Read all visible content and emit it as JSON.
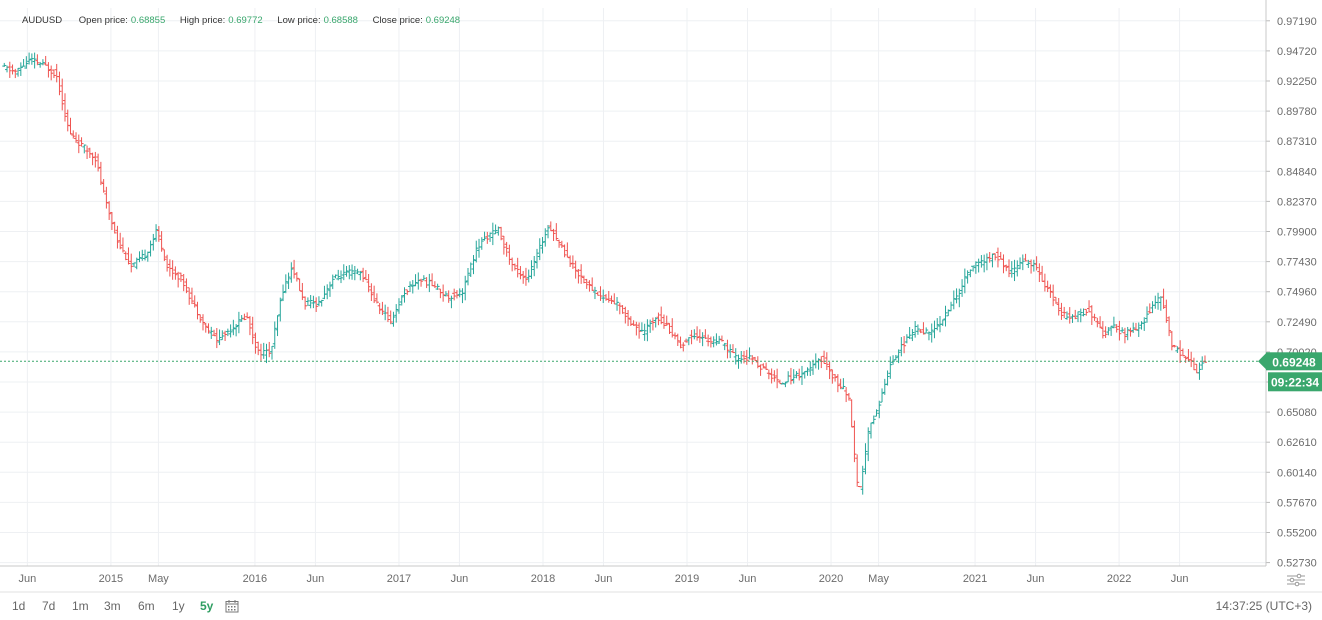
{
  "ticker": {
    "symbol": "AUDUSD",
    "open_label": "Open price:",
    "open_value": "0.68855",
    "high_label": "High price:",
    "high_value": "0.69772",
    "low_label": "Low price:",
    "low_value": "0.68588",
    "close_label": "Close price:",
    "close_value": "0.69248"
  },
  "current_price": {
    "value": "0.69248",
    "countdown": "09:22:34"
  },
  "ranges": [
    "1d",
    "7d",
    "1m",
    "3m",
    "6m",
    "1y",
    "5y"
  ],
  "active_range": "5y",
  "clock": "14:37:25 (UTC+3)",
  "colors": {
    "up": "#26a69a",
    "down": "#ef5350",
    "accent": "#3aa76d",
    "grid": "#eef0f3",
    "axis": "#6b6b6b"
  },
  "chart_data": {
    "type": "ohlc",
    "y_ticks": [
      "0.97190",
      "0.94720",
      "0.92250",
      "0.89780",
      "0.87310",
      "0.84840",
      "0.82370",
      "0.79900",
      "0.77430",
      "0.74960",
      "0.72490",
      "0.70020",
      "0.67550",
      "0.65080",
      "0.62610",
      "0.60140",
      "0.57670",
      "0.55200",
      "0.52730"
    ],
    "x_ticks": [
      {
        "label": "Jun",
        "x": 2014.42
      },
      {
        "label": "2015",
        "x": 2015.0
      },
      {
        "label": "May",
        "x": 2015.33
      },
      {
        "label": "2016",
        "x": 2016.0
      },
      {
        "label": "Jun",
        "x": 2016.42
      },
      {
        "label": "2017",
        "x": 2017.0
      },
      {
        "label": "Jun",
        "x": 2017.42
      },
      {
        "label": "2018",
        "x": 2018.0
      },
      {
        "label": "Jun",
        "x": 2018.42
      },
      {
        "label": "2019",
        "x": 2019.0
      },
      {
        "label": "Jun",
        "x": 2019.42
      },
      {
        "label": "2020",
        "x": 2020.0
      },
      {
        "label": "May",
        "x": 2020.33
      },
      {
        "label": "2021",
        "x": 2021.0
      },
      {
        "label": "Jun",
        "x": 2021.42
      },
      {
        "label": "2022",
        "x": 2022.0
      },
      {
        "label": "Jun",
        "x": 2022.42
      }
    ],
    "xlim": [
      2014.23,
      2023.02
    ],
    "ylim": [
      0.5245,
      0.9824
    ],
    "current_price": 0.69248,
    "price_path": [
      [
        2014.25,
        0.934
      ],
      [
        2014.35,
        0.93
      ],
      [
        2014.45,
        0.94
      ],
      [
        2014.55,
        0.935
      ],
      [
        2014.63,
        0.928
      ],
      [
        2014.72,
        0.88
      ],
      [
        2014.8,
        0.87
      ],
      [
        2014.9,
        0.86
      ],
      [
        2014.98,
        0.82
      ],
      [
        2015.06,
        0.79
      ],
      [
        2015.15,
        0.77
      ],
      [
        2015.25,
        0.78
      ],
      [
        2015.33,
        0.8
      ],
      [
        2015.4,
        0.77
      ],
      [
        2015.5,
        0.76
      ],
      [
        2015.58,
        0.74
      ],
      [
        2015.67,
        0.72
      ],
      [
        2015.75,
        0.71
      ],
      [
        2015.85,
        0.72
      ],
      [
        2015.95,
        0.73
      ],
      [
        2016.03,
        0.7
      ],
      [
        2016.12,
        0.7
      ],
      [
        2016.2,
        0.75
      ],
      [
        2016.27,
        0.77
      ],
      [
        2016.35,
        0.74
      ],
      [
        2016.45,
        0.74
      ],
      [
        2016.55,
        0.76
      ],
      [
        2016.65,
        0.765
      ],
      [
        2016.75,
        0.765
      ],
      [
        2016.85,
        0.74
      ],
      [
        2016.95,
        0.725
      ],
      [
        2017.05,
        0.75
      ],
      [
        2017.15,
        0.76
      ],
      [
        2017.25,
        0.755
      ],
      [
        2017.35,
        0.745
      ],
      [
        2017.45,
        0.75
      ],
      [
        2017.55,
        0.785
      ],
      [
        2017.62,
        0.795
      ],
      [
        2017.7,
        0.8
      ],
      [
        2017.8,
        0.77
      ],
      [
        2017.9,
        0.76
      ],
      [
        2017.97,
        0.78
      ],
      [
        2018.05,
        0.805
      ],
      [
        2018.12,
        0.79
      ],
      [
        2018.22,
        0.77
      ],
      [
        2018.32,
        0.755
      ],
      [
        2018.42,
        0.745
      ],
      [
        2018.52,
        0.74
      ],
      [
        2018.62,
        0.725
      ],
      [
        2018.7,
        0.715
      ],
      [
        2018.8,
        0.73
      ],
      [
        2018.88,
        0.72
      ],
      [
        2018.97,
        0.705
      ],
      [
        2019.05,
        0.715
      ],
      [
        2019.15,
        0.71
      ],
      [
        2019.25,
        0.708
      ],
      [
        2019.35,
        0.695
      ],
      [
        2019.45,
        0.695
      ],
      [
        2019.55,
        0.685
      ],
      [
        2019.65,
        0.675
      ],
      [
        2019.75,
        0.68
      ],
      [
        2019.85,
        0.685
      ],
      [
        2019.95,
        0.695
      ],
      [
        2020.05,
        0.675
      ],
      [
        2020.13,
        0.665
      ],
      [
        2020.2,
        0.58
      ],
      [
        2020.27,
        0.635
      ],
      [
        2020.35,
        0.66
      ],
      [
        2020.42,
        0.69
      ],
      [
        2020.5,
        0.705
      ],
      [
        2020.6,
        0.72
      ],
      [
        2020.7,
        0.715
      ],
      [
        2020.8,
        0.73
      ],
      [
        2020.9,
        0.75
      ],
      [
        2020.98,
        0.77
      ],
      [
        2021.08,
        0.775
      ],
      [
        2021.15,
        0.78
      ],
      [
        2021.25,
        0.765
      ],
      [
        2021.35,
        0.775
      ],
      [
        2021.43,
        0.77
      ],
      [
        2021.52,
        0.75
      ],
      [
        2021.62,
        0.73
      ],
      [
        2021.7,
        0.73
      ],
      [
        2021.8,
        0.735
      ],
      [
        2021.9,
        0.715
      ],
      [
        2021.97,
        0.72
      ],
      [
        2022.05,
        0.715
      ],
      [
        2022.15,
        0.72
      ],
      [
        2022.25,
        0.74
      ],
      [
        2022.3,
        0.745
      ],
      [
        2022.38,
        0.705
      ],
      [
        2022.48,
        0.695
      ],
      [
        2022.55,
        0.685
      ],
      [
        2022.6,
        0.6925
      ]
    ]
  }
}
